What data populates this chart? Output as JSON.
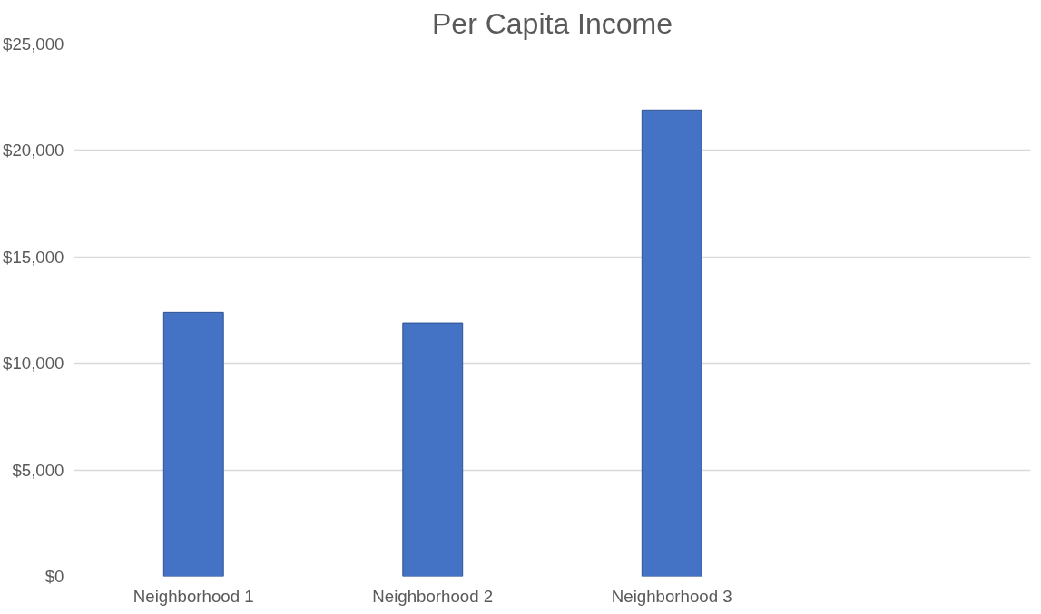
{
  "chart_data": {
    "type": "bar",
    "title": "Per Capita Income",
    "categories": [
      "Neighborhood 1",
      "Neighborhood 2",
      "Neighborhood 3",
      null
    ],
    "values": [
      12400,
      11900,
      21900,
      null
    ],
    "color": "#4472c4",
    "ylim": [
      0,
      25000
    ],
    "yticks": [
      {
        "value": 0,
        "label": "$0"
      },
      {
        "value": 5000,
        "label": "$5,000"
      },
      {
        "value": 10000,
        "label": "$10,000"
      },
      {
        "value": 15000,
        "label": "$15,000"
      },
      {
        "value": 20000,
        "label": "$20,000"
      },
      {
        "value": 25000,
        "label": "$25,000"
      }
    ],
    "grid": "y"
  }
}
